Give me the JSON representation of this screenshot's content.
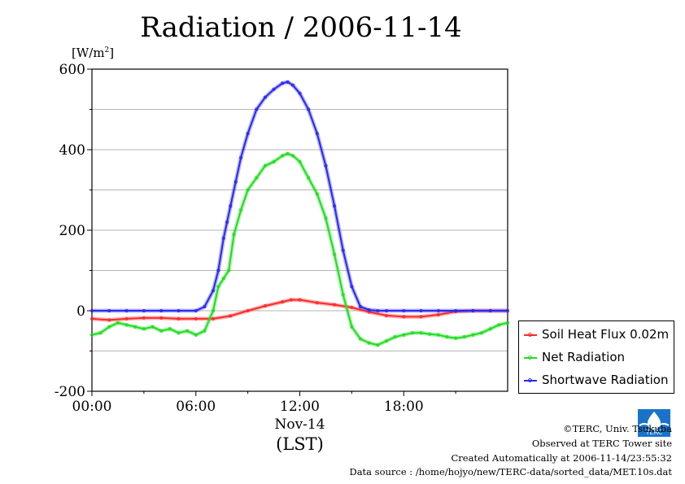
{
  "chart_data": {
    "type": "line",
    "title": "Radiation / 2006-11-14",
    "ylabel_unit": "[W/m2]",
    "xlabel_date": "Nov-14",
    "xlabel_tz": "(LST)",
    "ylim": [
      -200,
      600
    ],
    "xlim_hours": [
      0,
      24
    ],
    "yticks": [
      {
        "value": -200,
        "label": "-200"
      },
      {
        "value": 0,
        "label": "0"
      },
      {
        "value": 200,
        "label": "200"
      },
      {
        "value": 400,
        "label": "400"
      },
      {
        "value": 600,
        "label": "600"
      }
    ],
    "xticks": [
      {
        "value": 0,
        "label": "00:00"
      },
      {
        "value": 6,
        "label": "06:00"
      },
      {
        "value": 12,
        "label": "12:00"
      },
      {
        "value": 18,
        "label": "18:00"
      }
    ],
    "grid": true,
    "legend_position": "right",
    "series": [
      {
        "name": "Soil Heat Flux 0.02m",
        "color": "#ff2a2a",
        "x": [
          0,
          1,
          2,
          3,
          4,
          5,
          6,
          7,
          8,
          9,
          10,
          11,
          11.5,
          12,
          13,
          14,
          15,
          16,
          17,
          18,
          19,
          20,
          21,
          22,
          23,
          24
        ],
        "y": [
          -20,
          -23,
          -20,
          -18,
          -18,
          -20,
          -20,
          -20,
          -13,
          0,
          12,
          22,
          27,
          27,
          20,
          15,
          8,
          -3,
          -12,
          -15,
          -15,
          -10,
          -2,
          0,
          0,
          0
        ]
      },
      {
        "name": "Net Radiation",
        "color": "#22dd22",
        "x": [
          0,
          0.5,
          1,
          1.5,
          2,
          2.5,
          3,
          3.5,
          4,
          4.5,
          5,
          5.5,
          6,
          6.5,
          7,
          7.3,
          7.6,
          7.9,
          8.2,
          8.6,
          9,
          9.5,
          10,
          10.5,
          11,
          11.3,
          11.6,
          12,
          12.5,
          13,
          13.5,
          14,
          14.5,
          15,
          15.5,
          16,
          16.5,
          17,
          17.5,
          18,
          18.5,
          19,
          19.5,
          20,
          20.5,
          21,
          21.5,
          22,
          22.5,
          23,
          23.5,
          24
        ],
        "y": [
          -60,
          -55,
          -40,
          -30,
          -35,
          -40,
          -45,
          -40,
          -50,
          -45,
          -55,
          -50,
          -60,
          -50,
          0,
          60,
          80,
          100,
          190,
          250,
          300,
          330,
          360,
          370,
          385,
          390,
          385,
          370,
          330,
          290,
          230,
          140,
          40,
          -40,
          -70,
          -80,
          -85,
          -75,
          -65,
          -60,
          -55,
          -55,
          -58,
          -60,
          -65,
          -68,
          -65,
          -60,
          -55,
          -45,
          -35,
          -30
        ]
      },
      {
        "name": "Shortwave Radiation",
        "color": "#2a2aee",
        "x": [
          0,
          1,
          2,
          3,
          4,
          5,
          6,
          6.5,
          7,
          7.3,
          7.6,
          7.8,
          8,
          8.3,
          8.6,
          9,
          9.5,
          10,
          10.5,
          11,
          11.3,
          11.6,
          12,
          12.5,
          13,
          13.5,
          14,
          14.5,
          15,
          15.5,
          16,
          16.5,
          17,
          18,
          19,
          20,
          21,
          22,
          23,
          24
        ],
        "y": [
          0,
          0,
          0,
          0,
          0,
          0,
          0,
          10,
          50,
          100,
          180,
          220,
          260,
          320,
          380,
          440,
          500,
          530,
          550,
          565,
          568,
          560,
          540,
          500,
          440,
          360,
          260,
          150,
          60,
          10,
          2,
          0,
          0,
          0,
          0,
          0,
          0,
          0,
          0,
          0
        ]
      }
    ]
  },
  "footer": {
    "copyright": "©TERC, Univ. Tsukuba",
    "observed": "Observed at TERC Tower site",
    "created": "Created Automatically at 2006-11-14/23:55:32",
    "source": "Data source : /home/hojyo/new/TERC-data/sorted_data/MET.10s.dat",
    "logo_text": "TERC"
  }
}
